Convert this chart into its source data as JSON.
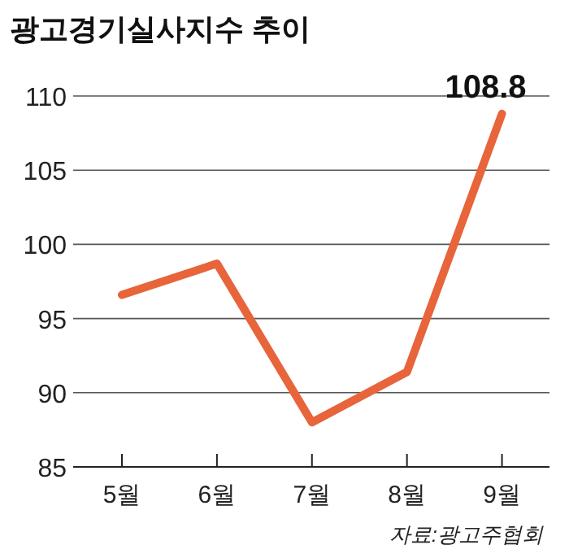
{
  "chart_data": {
    "type": "line",
    "title": "광고경기실사지수 추이",
    "categories": [
      "5월",
      "6월",
      "7월",
      "8월",
      "9월"
    ],
    "series": [
      {
        "color": "#e8643a",
        "values": [
          96.6,
          98.7,
          88.0,
          91.4,
          108.8
        ]
      }
    ],
    "ylim": [
      85,
      110
    ],
    "yticks": [
      85,
      90,
      95,
      100,
      105,
      110
    ],
    "grid": "y",
    "marker": "none",
    "line_style": "solid",
    "annotations": [
      {
        "text": "108.8",
        "x": "9월",
        "y": 108.8
      },
      "자료:광고주협회"
    ]
  }
}
